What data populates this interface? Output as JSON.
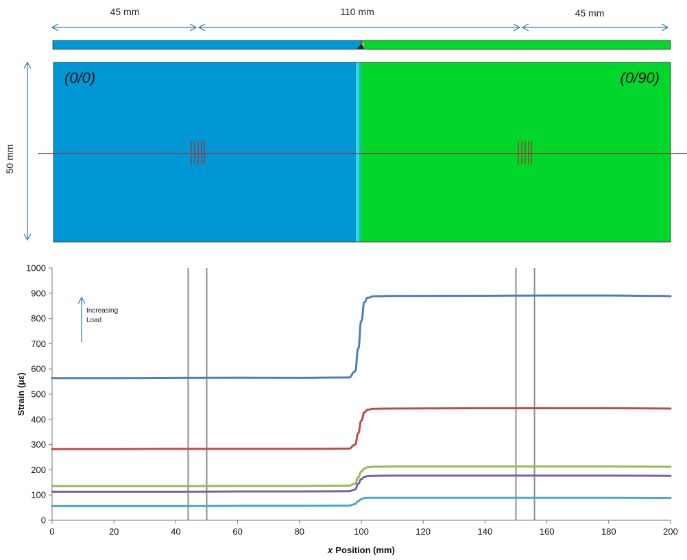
{
  "specimen": {
    "dim_left": "45 mm",
    "dim_middle": "110 mm",
    "dim_right": "45 mm",
    "dim_height": "50 mm",
    "left_label": "(0/0)",
    "right_label": "(0/90)",
    "colors": {
      "left": "#0097d6",
      "right": "#00d72a",
      "transition": "#3ad2e6",
      "arrow": "#3c7fc1",
      "line": "#a83232"
    }
  },
  "chart_data": {
    "type": "line",
    "xlabel_italic": "x",
    "xlabel": "Position (mm)",
    "ylabel": "Strain (με)",
    "xlim": [
      0,
      200
    ],
    "ylim": [
      0,
      1000
    ],
    "xticks": [
      0,
      20,
      40,
      60,
      80,
      100,
      120,
      140,
      160,
      180,
      200
    ],
    "yticks": [
      0,
      100,
      200,
      300,
      400,
      500,
      600,
      700,
      800,
      900,
      1000
    ],
    "grid": false,
    "vlines": [
      44,
      50,
      150,
      156
    ],
    "annotation": {
      "line1": "Increasing",
      "line2": "Load"
    },
    "series": [
      {
        "color": "#4a7ebb",
        "x": [
          0,
          20,
          40,
          60,
          80,
          96,
          98,
          99,
          100,
          101,
          102,
          104,
          110,
          140,
          160,
          180,
          198,
          200
        ],
        "y": [
          563,
          563,
          564,
          565,
          564,
          566,
          590,
          680,
          790,
          865,
          882,
          888,
          889,
          890,
          891,
          891,
          889,
          888
        ]
      },
      {
        "color": "#be4b48",
        "x": [
          0,
          20,
          40,
          60,
          80,
          96,
          98,
          99,
          100,
          101,
          102,
          104,
          110,
          140,
          160,
          180,
          200
        ],
        "y": [
          282,
          282,
          283,
          283,
          283,
          284,
          300,
          345,
          395,
          428,
          438,
          442,
          443,
          444,
          444,
          444,
          443
        ]
      },
      {
        "color": "#98b954",
        "x": [
          0,
          20,
          40,
          60,
          80,
          96,
          98,
          99,
          100,
          101,
          102,
          104,
          110,
          140,
          160,
          180,
          200
        ],
        "y": [
          135,
          135,
          135,
          136,
          136,
          137,
          145,
          170,
          193,
          205,
          210,
          212,
          213,
          213,
          213,
          213,
          212
        ]
      },
      {
        "color": "#7d60a0",
        "x": [
          0,
          20,
          40,
          60,
          80,
          96,
          98,
          99,
          100,
          101,
          102,
          104,
          110,
          140,
          160,
          180,
          200
        ],
        "y": [
          113,
          113,
          113,
          114,
          114,
          115,
          122,
          145,
          163,
          172,
          175,
          176,
          177,
          177,
          177,
          177,
          176
        ]
      },
      {
        "color": "#46aac5",
        "x": [
          0,
          20,
          40,
          60,
          80,
          96,
          98,
          99,
          100,
          101,
          102,
          104,
          110,
          140,
          160,
          180,
          200
        ],
        "y": [
          56,
          56,
          56,
          57,
          57,
          58,
          64,
          75,
          84,
          88,
          89,
          89,
          89,
          89,
          89,
          89,
          88
        ]
      }
    ]
  }
}
